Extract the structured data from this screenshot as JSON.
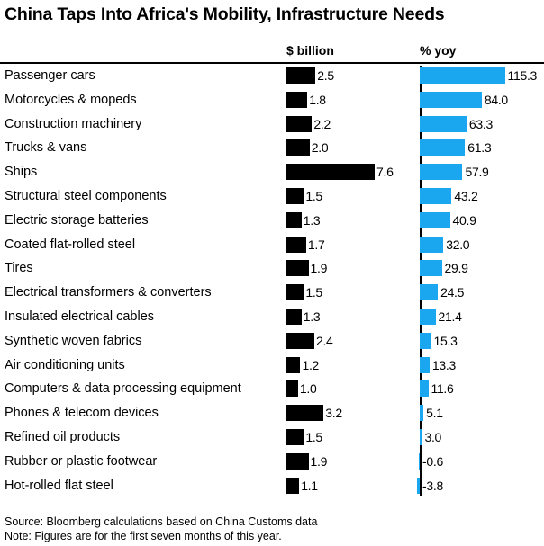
{
  "title": "China Taps Into Africa's Mobility, Infrastructure Needs",
  "chart_data": {
    "type": "bar",
    "title": "China Taps Into Africa's Mobility, Infrastructure Needs",
    "categories": [
      "Passenger cars",
      "Motorcycles & mopeds",
      "Construction machinery",
      "Trucks & vans",
      "Ships",
      "Structural steel components",
      "Electric storage batteries",
      "Coated flat-rolled steel",
      "Tires",
      "Electrical transformers & converters",
      "Insulated electrical cables",
      "Synthetic woven fabrics",
      "Air conditioning units",
      "Computers & data processing equipment",
      "Phones & telecom devices",
      "Refined oil products",
      "Rubber or plastic footwear",
      "Hot-rolled flat steel"
    ],
    "series": [
      {
        "name": "$ billion",
        "color": "#000000",
        "values": [
          2.5,
          1.8,
          2.2,
          2.0,
          7.6,
          1.5,
          1.3,
          1.7,
          1.9,
          1.5,
          1.3,
          2.4,
          1.2,
          1.0,
          3.2,
          1.5,
          1.9,
          1.1
        ],
        "labels": [
          "2.5",
          "1.8",
          "2.2",
          "2.0",
          "7.6",
          "1.5",
          "1.3",
          "1.7",
          "1.9",
          "1.5",
          "1.3",
          "2.4",
          "1.2",
          "1.0",
          "3.2",
          "1.5",
          "1.9",
          "1.1"
        ]
      },
      {
        "name": "% yoy",
        "color": "#1aa7f0",
        "values": [
          115.3,
          84.0,
          63.3,
          61.3,
          57.9,
          43.2,
          40.9,
          32.0,
          29.9,
          24.5,
          21.4,
          15.3,
          13.3,
          11.6,
          5.1,
          3.0,
          -0.6,
          -3.8
        ],
        "labels": [
          "115.3",
          "84.0",
          "63.3",
          "61.3",
          "57.9",
          "43.2",
          "40.9",
          "32.0",
          "29.9",
          "24.5",
          "21.4",
          "15.3",
          "13.3",
          "11.6",
          "5.1",
          "3.0",
          "-0.6",
          "-3.8"
        ]
      }
    ]
  },
  "footer": {
    "source": "Source: Bloomberg calculations based on China Customs data",
    "note": "Note: Figures are for the first seven months of this year."
  }
}
